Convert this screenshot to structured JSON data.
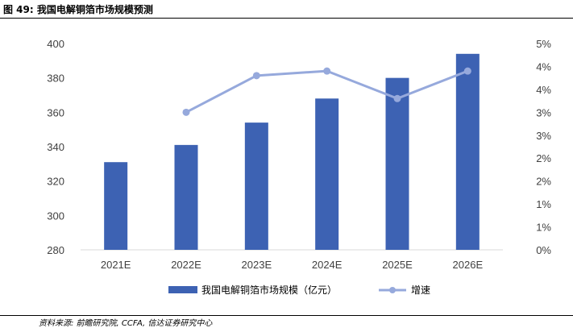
{
  "figure": {
    "title": "图 49:  我国电解铜箔市场规模预测",
    "source": "资料来源: 前瞻研究院, CCFA, 信达证券研究中心"
  },
  "chart_data": {
    "type": "bar",
    "categories": [
      "2021E",
      "2022E",
      "2023E",
      "2024E",
      "2025E",
      "2026E"
    ],
    "series": [
      {
        "name": "我国电解铜箔市场规模（亿元）",
        "type": "bar",
        "axis": "left",
        "color": "#3D62B3",
        "values": [
          331,
          341,
          354,
          368,
          380,
          394
        ]
      },
      {
        "name": "增速",
        "type": "line",
        "axis": "right",
        "color": "#96A9DC",
        "values": [
          null,
          3.0,
          3.8,
          3.9,
          3.3,
          3.9
        ]
      }
    ],
    "left_axis": {
      "ylim": [
        280,
        400
      ],
      "ticks": [
        "400",
        "380",
        "360",
        "340",
        "320",
        "300",
        "280"
      ]
    },
    "right_axis": {
      "ylim": [
        0,
        4.5
      ],
      "ticks": [
        "5%",
        "4%",
        "4%",
        "3%",
        "3%",
        "2%",
        "2%",
        "1%",
        "1%",
        "0%"
      ]
    },
    "legend_position": "bottom",
    "grid": false
  }
}
